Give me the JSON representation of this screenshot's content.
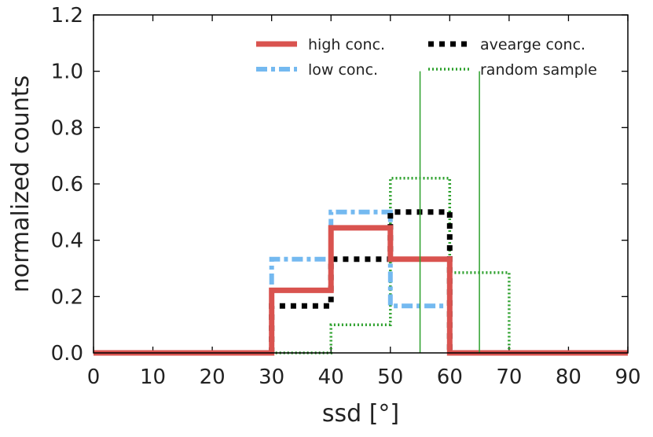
{
  "chart_data": {
    "type": "line",
    "xlabel": "ssd [°]",
    "ylabel": "normalized counts",
    "xlim": [
      0,
      90
    ],
    "ylim": [
      0,
      1.2
    ],
    "x_ticks": [
      "0",
      "10",
      "20",
      "30",
      "40",
      "50",
      "60",
      "70",
      "80",
      "90"
    ],
    "y_ticks": [
      "0.0",
      "0.2",
      "0.4",
      "0.6",
      "0.8",
      "1.0",
      "1.2"
    ],
    "grid": false,
    "legend_position": "top-right",
    "series": [
      {
        "name": "high conc.",
        "color": "#d9534f",
        "style": "solid",
        "x": [
          0,
          30,
          30,
          40,
          40,
          50,
          50,
          60,
          60,
          90
        ],
        "y": [
          0,
          0,
          0.222,
          0.222,
          0.444,
          0.444,
          0.333,
          0.333,
          0,
          0
        ]
      },
      {
        "name": "low conc.",
        "color": "#74b9f0",
        "style": "dashdot",
        "x": [
          30,
          30,
          40,
          40,
          50,
          50,
          60,
          60
        ],
        "y": [
          0,
          0.333,
          0.333,
          0.5,
          0.5,
          0.167,
          0.167,
          0
        ]
      },
      {
        "name": "avearge conc.",
        "color": "#000000",
        "style": "dotted",
        "x": [
          30,
          30,
          40,
          40,
          50,
          50,
          60,
          60
        ],
        "y": [
          0,
          0.167,
          0.167,
          0.333,
          0.333,
          0.5,
          0.5,
          0
        ]
      },
      {
        "name": "random sample",
        "color": "#2ca02c",
        "style": "fine-dotted",
        "x": [
          30,
          30,
          40,
          40,
          50,
          50,
          60,
          60,
          70,
          70
        ],
        "y": [
          0,
          0,
          0,
          0.1,
          0.1,
          0.62,
          0.62,
          0.285,
          0.285,
          0
        ]
      }
    ],
    "vertical_lines": [
      {
        "x": 55,
        "y_top": 1.0,
        "color": "#2ca02c"
      },
      {
        "x": 65,
        "y_top": 1.0,
        "color": "#2ca02c"
      }
    ]
  }
}
